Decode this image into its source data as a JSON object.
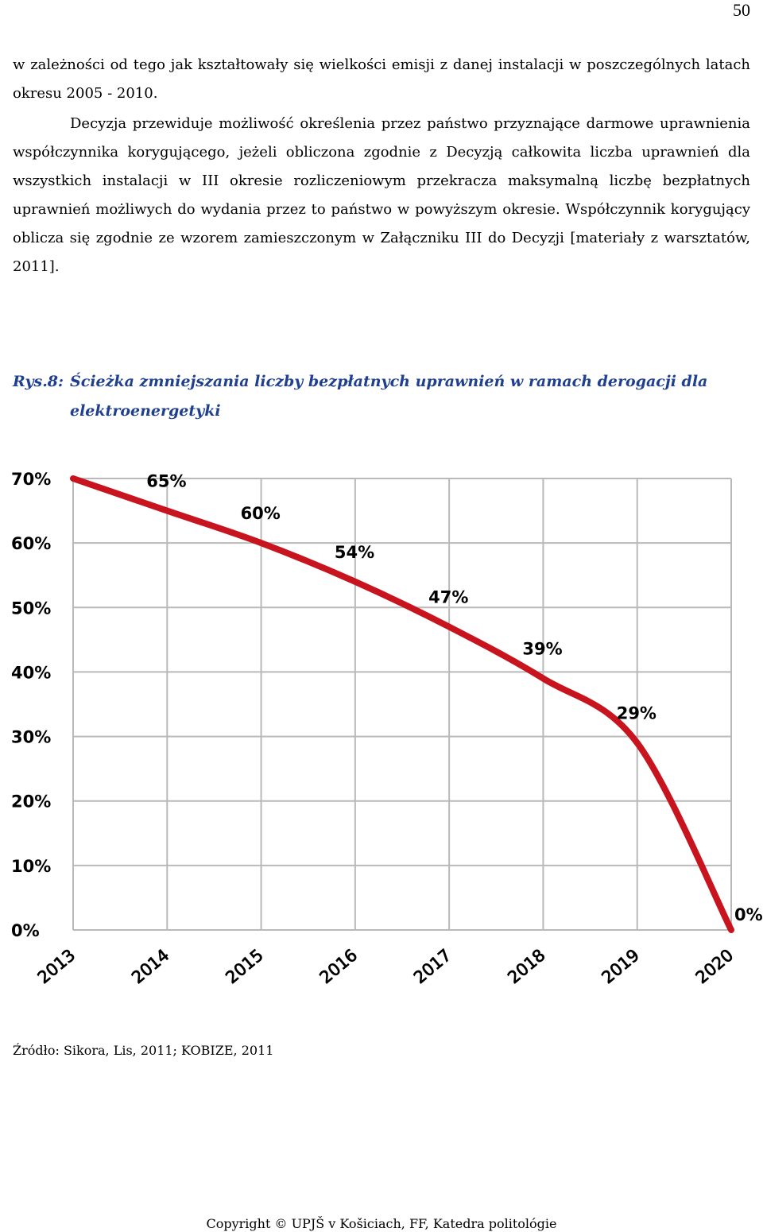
{
  "page_number": "50",
  "paragraphs": [
    "w zależności od tego jak kształtowały się wielkości emisji z danej instalacji w poszczególnych latach okresu 2005 - 2010.",
    "Decyzja przewiduje możliwość określenia przez państwo przyznające darmowe uprawnienia współczynnika korygującego, jeżeli obliczona zgodnie z Decyzją całkowita liczba uprawnień dla wszystkich instalacji w III okresie rozliczeniowym przekracza maksymalną liczbę bezpłatnych uprawnień możliwych do wydania przez to państwo w powyższym okresie. Współczynnik korygujący oblicza się zgodnie ze wzorem zamieszczonym w Załączniku III do Decyzji [materiały z warsztatów, 2011]."
  ],
  "figure": {
    "label": "Rys.8:",
    "title_line1": "Ścieżka zmniejszania liczby bezpłatnych uprawnień w ramach derogacji dla",
    "title_line2": "elektroenergetyki"
  },
  "chart_data": {
    "type": "line",
    "x": [
      "2013",
      "2014",
      "2015",
      "2016",
      "2017",
      "2018",
      "2019",
      "2020"
    ],
    "series": [
      {
        "values": [
          70,
          65,
          60,
          54,
          47,
          39,
          29,
          0
        ]
      }
    ],
    "data_labels": [
      "65%",
      "60%",
      "54%",
      "47%",
      "39%",
      "29%",
      "0%"
    ],
    "y_ticks": [
      "0%",
      "10%",
      "20%",
      "30%",
      "40%",
      "50%",
      "60%",
      "70%"
    ],
    "ylim": [
      0,
      70
    ],
    "grid": true,
    "line_color": "#c8141e"
  },
  "source": "Źródło:  Sikora, Lis, 2011; KOBIZE, 2011",
  "footer": "Copyright © UPJŠ v Košiciach, FF, Katedra politológie"
}
